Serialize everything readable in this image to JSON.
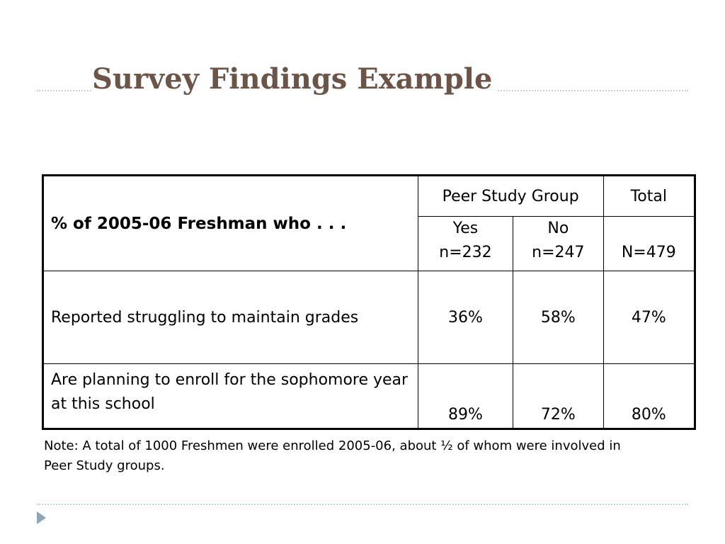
{
  "slide": {
    "title": "Survey Findings Example"
  },
  "table": {
    "row_header": "% of 2005-06 Freshman who . . .",
    "group_header": "Peer Study Group",
    "total_header": "Total",
    "subheaders": [
      {
        "label": "Yes",
        "n": "n=232"
      },
      {
        "label": "No",
        "n": "n=247"
      },
      {
        "label": "",
        "n": "N=479"
      }
    ],
    "rows": [
      {
        "label": "Reported struggling to maintain grades",
        "yes": "36%",
        "no": "58%",
        "total": "47%"
      },
      {
        "label": "Are planning to enroll for the sophomore year at this school",
        "yes": "89%",
        "no": "72%",
        "total": "80%"
      }
    ]
  },
  "note": "Note:  A total of 1000 Freshmen were enrolled 2005-06, about ½ of whom were involved in Peer Study groups.",
  "colors": {
    "title": "#6b5448",
    "rule": "#c5cfd6",
    "bullet": "#8fa4b5"
  },
  "icons": [
    "triangle-bullet-icon"
  ]
}
